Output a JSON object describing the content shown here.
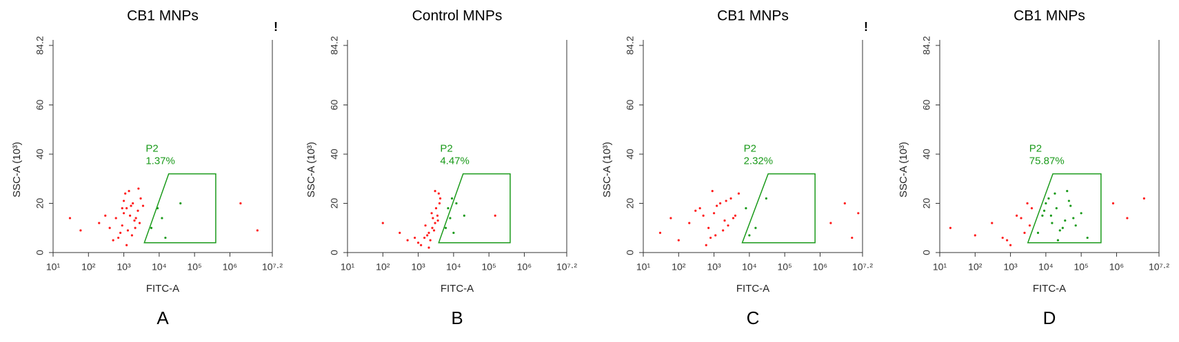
{
  "chart_data": [
    {
      "type": "scatter",
      "title": "CB1 MNPs",
      "panel_label": "A",
      "flag": "!",
      "xlabel": "FITC-A",
      "ylabel": "SSC-A (10³)",
      "xlog": true,
      "xlim": [
        10,
        15848932
      ],
      "ylim": [
        0,
        84.2
      ],
      "xticks": [
        {
          "value": 10,
          "label": "10¹"
        },
        {
          "value": 100,
          "label": "10²"
        },
        {
          "value": 1000,
          "label": "10³"
        },
        {
          "value": 10000,
          "label": "10⁴"
        },
        {
          "value": 100000,
          "label": "10⁵"
        },
        {
          "value": 1000000,
          "label": "10⁶"
        },
        {
          "value": 15848932,
          "label": "10⁷·²"
        }
      ],
      "yticks": [
        0,
        20,
        40,
        60,
        84.2
      ],
      "gate": {
        "label": "P2",
        "percent_label": "1.37%",
        "color": "#1a9a1a",
        "x": [
          3800,
          18600,
          398000,
          398000
        ],
        "y": [
          4,
          32,
          32,
          4
        ]
      },
      "series": [
        {
          "color": "#ff1a1a",
          "x": [
            200,
            400,
            600,
            800,
            1000,
            1200,
            1500,
            1800,
            2000,
            2500,
            3000,
            700,
            900,
            1100,
            1300,
            1600,
            2200,
            2800,
            500,
            300,
            1000,
            1400,
            1700,
            2100,
            60,
            30,
            3500,
            1200,
            900,
            2600,
            2000000,
            6000000
          ],
          "y": [
            12,
            10,
            14,
            8,
            16,
            18,
            15,
            20,
            13,
            17,
            22,
            6,
            11,
            24,
            9,
            19,
            14,
            12,
            5,
            15,
            21,
            25,
            7,
            10,
            9,
            14,
            19,
            3,
            18,
            26,
            20,
            9
          ]
        },
        {
          "color": "#1a9a1a",
          "x": [
            6000,
            9000,
            15000,
            40000,
            12000
          ],
          "y": [
            10,
            18,
            6,
            20,
            14
          ]
        }
      ]
    },
    {
      "type": "scatter",
      "title": "Control MNPs",
      "panel_label": "B",
      "xlabel": "FITC-A",
      "ylabel": "SSC-A (10³)",
      "xlog": true,
      "xlim": [
        10,
        15848932
      ],
      "ylim": [
        0,
        84.2
      ],
      "xticks": [
        {
          "value": 10,
          "label": "10¹"
        },
        {
          "value": 100,
          "label": "10²"
        },
        {
          "value": 1000,
          "label": "10³"
        },
        {
          "value": 10000,
          "label": "10⁴"
        },
        {
          "value": 100000,
          "label": "10⁵"
        },
        {
          "value": 1000000,
          "label": "10⁶"
        },
        {
          "value": 15848932,
          "label": "10⁷·²"
        }
      ],
      "yticks": [
        0,
        20,
        40,
        60,
        84.2
      ],
      "gate": {
        "label": "P2",
        "percent_label": "4.47%",
        "color": "#1a9a1a",
        "x": [
          3800,
          18600,
          398000,
          398000
        ],
        "y": [
          4,
          32,
          32,
          4
        ]
      },
      "series": [
        {
          "color": "#ff1a1a",
          "x": [
            1000,
            1500,
            2000,
            2500,
            3000,
            3500,
            4000,
            2200,
            2800,
            3200,
            1800,
            1200,
            800,
            500,
            300,
            100,
            2600,
            3800,
            4200,
            1600,
            2400,
            3000,
            3600,
            2000,
            150000
          ],
          "y": [
            4,
            6,
            8,
            10,
            12,
            15,
            20,
            5,
            9,
            18,
            7,
            3,
            6,
            5,
            8,
            12,
            14,
            24,
            22,
            11,
            16,
            25,
            13,
            2,
            15
          ]
        },
        {
          "color": "#1a9a1a",
          "x": [
            6000,
            8000,
            7000,
            10000,
            12000,
            20000,
            9000
          ],
          "y": [
            10,
            14,
            18,
            8,
            20,
            15,
            22
          ]
        }
      ]
    },
    {
      "type": "scatter",
      "title": "CB1 MNPs",
      "panel_label": "C",
      "flag": "!",
      "xlabel": "FITC-A",
      "ylabel": "SSC-A (10³)",
      "xlog": true,
      "xlim": [
        10,
        15848932
      ],
      "ylim": [
        0,
        84.2
      ],
      "xticks": [
        {
          "value": 10,
          "label": "10¹"
        },
        {
          "value": 100,
          "label": "10²"
        },
        {
          "value": 1000,
          "label": "10³"
        },
        {
          "value": 10000,
          "label": "10⁴"
        },
        {
          "value": 100000,
          "label": "10⁵"
        },
        {
          "value": 1000000,
          "label": "10⁶"
        },
        {
          "value": 15848932,
          "label": "10⁷·²"
        }
      ],
      "yticks": [
        0,
        20,
        40,
        60,
        84.2
      ],
      "gate": {
        "label": "P2",
        "percent_label": "2.32%",
        "color": "#1a9a1a",
        "x": [
          6300,
          34000,
          720000,
          720000
        ],
        "y": [
          4,
          32,
          32,
          4
        ]
      },
      "series": [
        {
          "color": "#ff1a1a",
          "x": [
            30,
            60,
            100,
            200,
            400,
            700,
            1000,
            1500,
            2000,
            3000,
            4000,
            5000,
            800,
            1200,
            2500,
            600,
            300,
            1800,
            900,
            3500,
            1100,
            2200,
            500,
            2000000,
            5000000,
            8000000,
            12000000
          ],
          "y": [
            8,
            14,
            5,
            12,
            18,
            10,
            16,
            20,
            13,
            22,
            15,
            24,
            6,
            19,
            11,
            3,
            17,
            9,
            25,
            14,
            7,
            21,
            15,
            12,
            20,
            6,
            16
          ]
        },
        {
          "color": "#1a9a1a",
          "x": [
            8000,
            15000,
            30000,
            10000
          ],
          "y": [
            18,
            10,
            22,
            7
          ]
        }
      ]
    },
    {
      "type": "scatter",
      "title": "CB1 MNPs",
      "panel_label": "D",
      "xlabel": "FITC-A",
      "ylabel": "SSC-A (10³)",
      "xlog": true,
      "xlim": [
        10,
        15848932
      ],
      "ylim": [
        0,
        84.2
      ],
      "xticks": [
        {
          "value": 10,
          "label": "10¹"
        },
        {
          "value": 100,
          "label": "10²"
        },
        {
          "value": 1000,
          "label": "10³"
        },
        {
          "value": 10000,
          "label": "10⁴"
        },
        {
          "value": 100000,
          "label": "10⁵"
        },
        {
          "value": 1000000,
          "label": "10⁶"
        },
        {
          "value": 15848932,
          "label": "10⁷·²"
        }
      ],
      "yticks": [
        0,
        20,
        40,
        60,
        84.2
      ],
      "gate": {
        "label": "P2",
        "percent_label": "75.87%",
        "color": "#1a9a1a",
        "x": [
          3100,
          15800,
          363000,
          363000
        ],
        "y": [
          4,
          32,
          32,
          4
        ]
      },
      "series": [
        {
          "color": "#ff1a1a",
          "x": [
            20,
            100,
            300,
            800,
            1500,
            2500,
            3500,
            4000,
            1000,
            2000,
            600,
            3000,
            800000,
            2000000,
            6000000
          ],
          "y": [
            10,
            7,
            12,
            5,
            15,
            8,
            11,
            18,
            3,
            14,
            6,
            20,
            20,
            14,
            22
          ]
        },
        {
          "color": "#1a9a1a",
          "x": [
            6000,
            8000,
            10000,
            15000,
            20000,
            30000,
            40000,
            60000,
            100000,
            150000,
            12000,
            25000,
            50000,
            18000,
            35000,
            9000,
            70000,
            22000,
            45000,
            14000
          ],
          "y": [
            8,
            15,
            20,
            12,
            18,
            10,
            25,
            14,
            16,
            6,
            22,
            9,
            19,
            24,
            13,
            17,
            11,
            5,
            21,
            15
          ]
        }
      ]
    }
  ]
}
